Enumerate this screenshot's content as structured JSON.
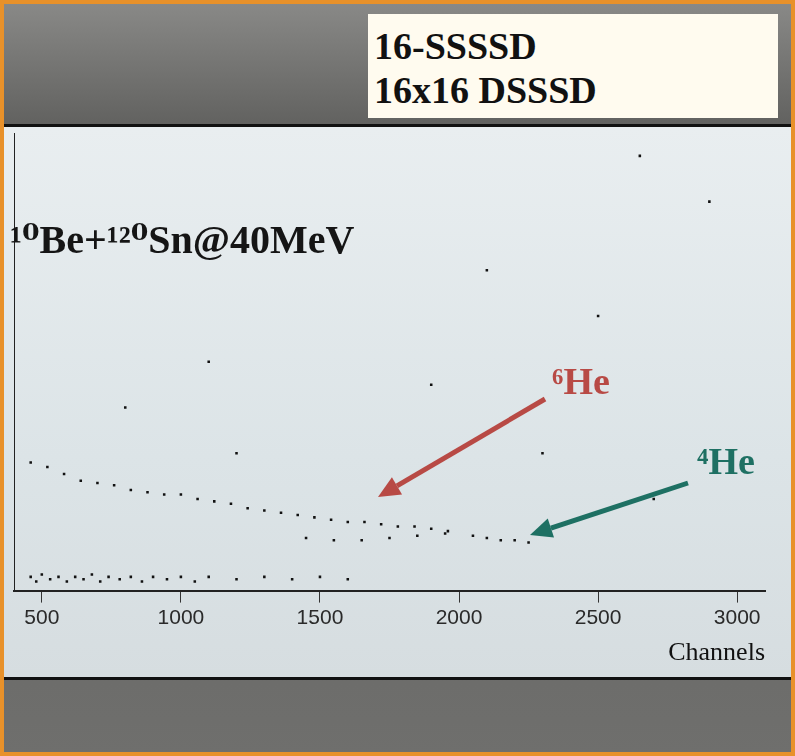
{
  "header": {
    "lines": [
      "16-SSSSD",
      "16x16 DSSSD"
    ]
  },
  "chart_data": {
    "type": "scatter",
    "title": "¹⁰Be+¹²⁰Sn@40MeV",
    "x_label": "Channels",
    "x": [
      460,
      480,
      500,
      530,
      560,
      590,
      620,
      650,
      680,
      710,
      740,
      780,
      820,
      860,
      900,
      950,
      1000,
      1050,
      1100,
      1200,
      1300,
      1400,
      1500,
      1600,
      460,
      520,
      580,
      640,
      700,
      760,
      820,
      880,
      940,
      1000,
      1060,
      1120,
      1180,
      1240,
      1300,
      1360,
      1420,
      1480,
      1540,
      1600,
      1660,
      1720,
      1780,
      1840,
      1900,
      1960,
      1450,
      1550,
      1650,
      1750,
      1850,
      1950,
      2050,
      2100,
      2150,
      2200,
      2250,
      1200,
      1900,
      2500,
      2900,
      2700,
      1100,
      800,
      2300,
      2650,
      2100
    ],
    "values": [
      3,
      2,
      3.5,
      2.5,
      3,
      2,
      3,
      2.5,
      3.5,
      2,
      3,
      2.5,
      3,
      2,
      3,
      2.5,
      3,
      2,
      3,
      2.5,
      3,
      2.5,
      3,
      2.5,
      28,
      27,
      25.5,
      24,
      23.5,
      23,
      22,
      21.5,
      21,
      21,
      20,
      19.5,
      19,
      18,
      17.5,
      17,
      16.5,
      16,
      15.5,
      15,
      15,
      14.5,
      14,
      14,
      13.5,
      13,
      11.5,
      11,
      11,
      11.5,
      12,
      12.5,
      12,
      11.5,
      11,
      11,
      10.5,
      30,
      45,
      60,
      85,
      20,
      50,
      40,
      30,
      95,
      70
    ],
    "color": "#111111",
    "marker": "square",
    "xlim": [
      400,
      3100
    ],
    "xticks": [
      500,
      1000,
      1500,
      2000,
      2500,
      3000
    ],
    "ylim": [
      0,
      100
    ],
    "yticks": [],
    "grid": false,
    "tick_labels": "x",
    "annotations": [
      {
        "text": "⁶He",
        "color": "#b84a45"
      },
      {
        "text": "⁴He",
        "color": "#1e7063"
      }
    ]
  }
}
